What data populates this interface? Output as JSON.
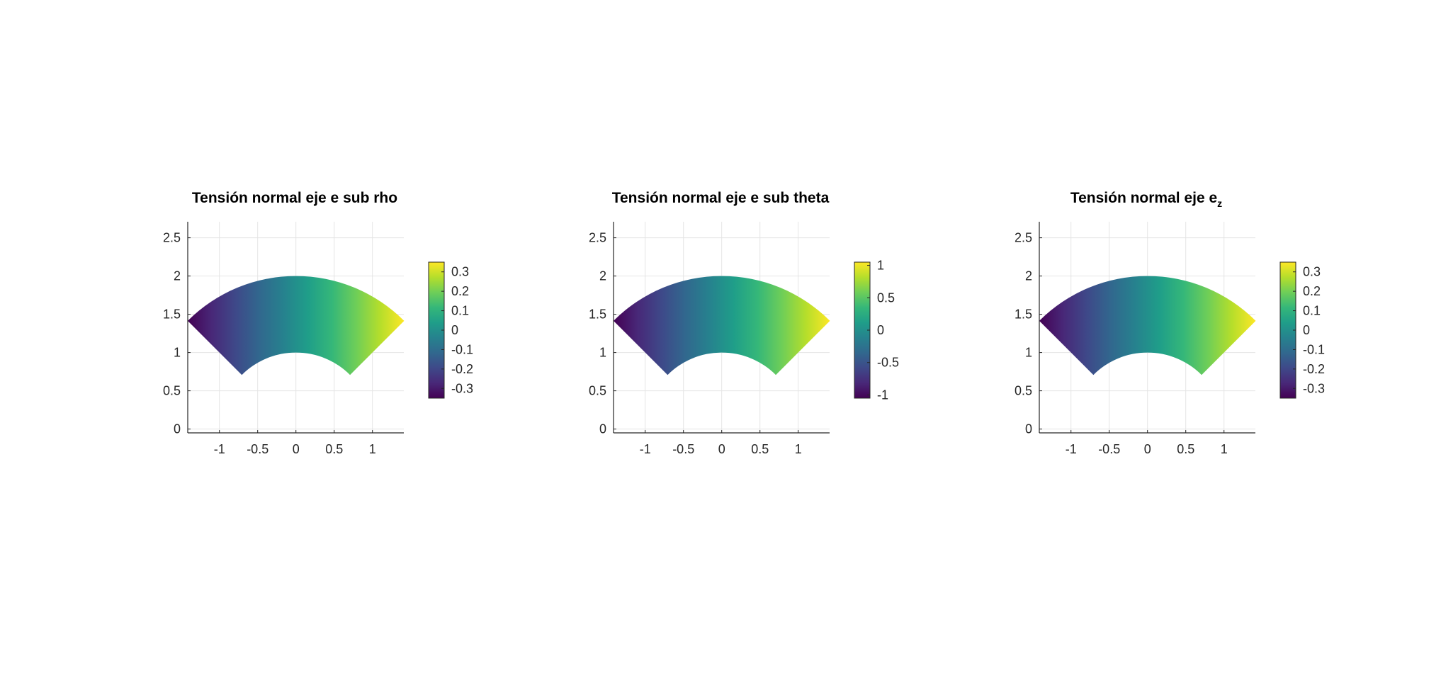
{
  "colors": {
    "grid": "#e4e4e4",
    "axis": "#262626",
    "text": "#262626",
    "background": "#ffffff",
    "colormap_name": "viridis",
    "colormap": [
      "#440154",
      "#482878",
      "#3e4989",
      "#31688e",
      "#26828e",
      "#1f9e89",
      "#35b779",
      "#6ece58",
      "#b5de2b",
      "#fde725"
    ]
  },
  "chart_data": [
    {
      "type": "heatmap",
      "title": "Tensión normal eje e sub rho",
      "title_sub": "",
      "xlabel": "",
      "ylabel": "",
      "xlim": [
        -1.414,
        1.414
      ],
      "ylim": [
        -0.05,
        2.75
      ],
      "xticks": [
        -1,
        -0.5,
        0,
        0.5,
        1
      ],
      "xticklabels": [
        "-1",
        "-0.5",
        "0",
        "0.5",
        "1"
      ],
      "yticks": [
        0,
        0.5,
        1,
        1.5,
        2,
        2.5
      ],
      "yticklabels": [
        "0",
        "0.5",
        "1",
        "1.5",
        "2",
        "2.5"
      ],
      "grid": true,
      "domain": {
        "shape": "annular sector",
        "r_inner": 1,
        "r_outer": 2,
        "theta_deg": [
          45,
          135
        ]
      },
      "field": "value increases from left edge (min) to right edge (max) with angle",
      "clim": [
        -0.35,
        0.35
      ],
      "colorbar_ticks": [
        0.3,
        0.2,
        0.1,
        0,
        -0.1,
        -0.2,
        -0.3
      ],
      "colorbar_ticklabels": [
        "0.3",
        "0.2",
        "0.1",
        "0",
        "-0.1",
        "-0.2",
        "-0.3"
      ]
    },
    {
      "type": "heatmap",
      "title": "Tensión normal eje e sub theta",
      "title_sub": "",
      "xlabel": "",
      "ylabel": "",
      "xlim": [
        -1.414,
        1.414
      ],
      "ylim": [
        -0.05,
        2.75
      ],
      "xticks": [
        -1,
        -0.5,
        0,
        0.5,
        1
      ],
      "xticklabels": [
        "-1",
        "-0.5",
        "0",
        "0.5",
        "1"
      ],
      "yticks": [
        0,
        0.5,
        1,
        1.5,
        2,
        2.5
      ],
      "yticklabels": [
        "0",
        "0.5",
        "1",
        "1.5",
        "2",
        "2.5"
      ],
      "grid": true,
      "domain": {
        "shape": "annular sector",
        "r_inner": 1,
        "r_outer": 2,
        "theta_deg": [
          45,
          135
        ]
      },
      "field": "value increases from left edge (min) to right edge (max) with angle",
      "clim": [
        -1.05,
        1.05
      ],
      "colorbar_ticks": [
        1,
        0.5,
        0,
        -0.5,
        -1
      ],
      "colorbar_ticklabels": [
        "1",
        "0.5",
        "0",
        "-0.5",
        "-1"
      ]
    },
    {
      "type": "heatmap",
      "title": "Tensión normal eje e",
      "title_sub": "z",
      "xlabel": "",
      "ylabel": "",
      "xlim": [
        -1.414,
        1.414
      ],
      "ylim": [
        -0.05,
        2.75
      ],
      "xticks": [
        -1,
        -0.5,
        0,
        0.5,
        1
      ],
      "xticklabels": [
        "-1",
        "-0.5",
        "0",
        "0.5",
        "1"
      ],
      "yticks": [
        0,
        0.5,
        1,
        1.5,
        2,
        2.5
      ],
      "yticklabels": [
        "0",
        "0.5",
        "1",
        "1.5",
        "2",
        "2.5"
      ],
      "grid": true,
      "domain": {
        "shape": "annular sector",
        "r_inner": 1,
        "r_outer": 2,
        "theta_deg": [
          45,
          135
        ]
      },
      "field": "value increases from left edge (min) to right edge (max) with angle",
      "clim": [
        -0.35,
        0.35
      ],
      "colorbar_ticks": [
        0.3,
        0.2,
        0.1,
        0,
        -0.1,
        -0.2,
        -0.3
      ],
      "colorbar_ticklabels": [
        "0.3",
        "0.2",
        "0.1",
        "0",
        "-0.1",
        "-0.2",
        "-0.3"
      ]
    }
  ]
}
